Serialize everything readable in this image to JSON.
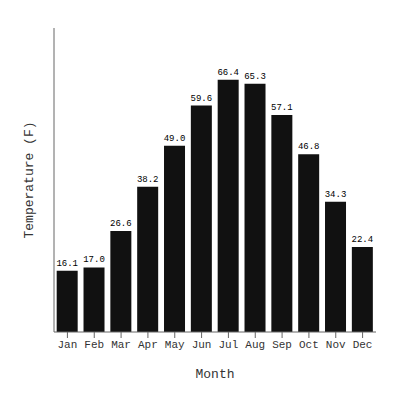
{
  "chart_data": {
    "type": "bar",
    "categories": [
      "Jan",
      "Feb",
      "Mar",
      "Apr",
      "May",
      "Jun",
      "Jul",
      "Aug",
      "Sep",
      "Oct",
      "Nov",
      "Dec"
    ],
    "values": [
      16.1,
      17.0,
      26.6,
      38.2,
      49.0,
      59.6,
      66.4,
      65.3,
      57.1,
      46.8,
      34.3,
      22.4
    ],
    "value_labels": [
      "16.1",
      "17.0",
      "26.6",
      "38.2",
      "49.0",
      "59.6",
      "66.4",
      "65.3",
      "57.1",
      "46.8",
      "34.3",
      "22.4"
    ],
    "color": "#111111",
    "xlabel": "Month",
    "ylabel": "Temperature (F)",
    "ylim": [
      0,
      80
    ],
    "data_labels": true,
    "tick_labels": "x",
    "grid": false
  }
}
